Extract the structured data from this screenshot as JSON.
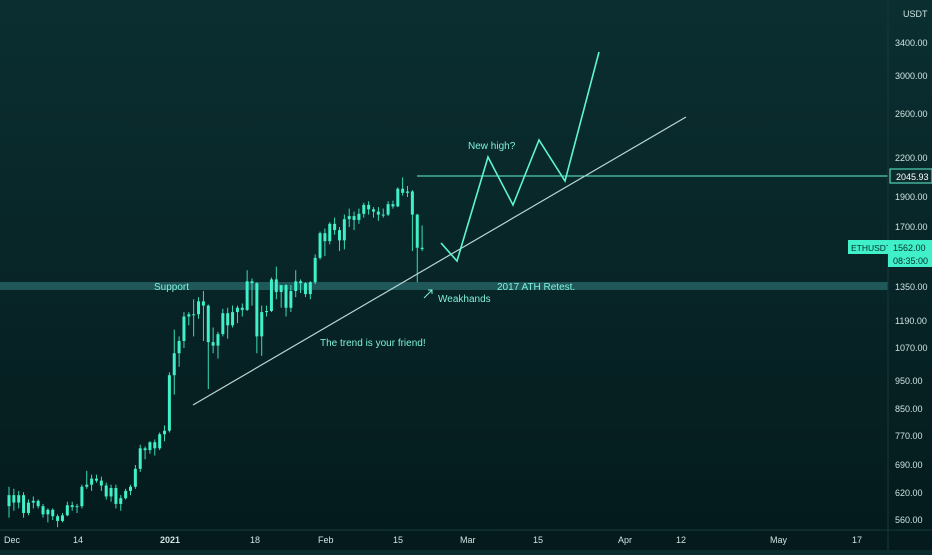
{
  "colors": {
    "bg_top": "#0b2f31",
    "bg_bottom": "#041a1c",
    "candle": "#3ff0c8",
    "drawing": "#5ff5d4",
    "trendline": "#b9d7d3",
    "support_band": "#2a6a6c",
    "text": "#7ff3de",
    "axis_text": "#cfe3e1",
    "price_tag_bg": "#3ff0c8",
    "price_tag_text": "#06302c"
  },
  "price_scale": {
    "currency": "USDT",
    "ticks": [
      "3400.00",
      "3000.00",
      "2600.00",
      "2200.00",
      "1900.00",
      "1700.00",
      "1350.00",
      "1190.00",
      "1070.00",
      "950.00",
      "850.00",
      "770.00",
      "690.00",
      "620.00",
      "560.00"
    ],
    "highlight_level": "2045.93",
    "last_price_symbol": "ETHUSDT",
    "last_price": "1562.00",
    "countdown": "08:35:00"
  },
  "time_axis": {
    "labels": [
      "Dec",
      "14",
      "2021",
      "18",
      "Feb",
      "15",
      "Mar",
      "15",
      "Apr",
      "12",
      "May",
      "17"
    ]
  },
  "annotations": {
    "support": "Support",
    "ath_retest": "2017 ATH Retest.",
    "trend_friend": "The trend is your friend!",
    "weakhands": "Weakhands",
    "new_high": "New high?"
  },
  "chart_data": {
    "type": "candlestick",
    "symbol": "ETHUSDT",
    "scale": "log",
    "ylim": [
      540,
      3600
    ],
    "candles": [
      {
        "x": "Dec 1",
        "o": 590,
        "h": 635,
        "l": 565,
        "c": 615
      },
      {
        "x": "Dec 2",
        "o": 615,
        "h": 630,
        "l": 580,
        "c": 598
      },
      {
        "x": "Dec 3",
        "o": 598,
        "h": 625,
        "l": 585,
        "c": 615
      },
      {
        "x": "Dec 4",
        "o": 615,
        "h": 622,
        "l": 565,
        "c": 575
      },
      {
        "x": "Dec 5",
        "o": 575,
        "h": 605,
        "l": 570,
        "c": 598
      },
      {
        "x": "Dec 6",
        "o": 598,
        "h": 612,
        "l": 585,
        "c": 602
      },
      {
        "x": "Dec 7",
        "o": 602,
        "h": 605,
        "l": 585,
        "c": 590
      },
      {
        "x": "Dec 8",
        "o": 590,
        "h": 595,
        "l": 565,
        "c": 572
      },
      {
        "x": "Dec 9",
        "o": 572,
        "h": 585,
        "l": 555,
        "c": 582
      },
      {
        "x": "Dec 10",
        "o": 582,
        "h": 585,
        "l": 560,
        "c": 568
      },
      {
        "x": "Dec 11",
        "o": 568,
        "h": 572,
        "l": 545,
        "c": 558
      },
      {
        "x": "Dec 12",
        "o": 558,
        "h": 575,
        "l": 555,
        "c": 570
      },
      {
        "x": "Dec 13",
        "o": 570,
        "h": 600,
        "l": 568,
        "c": 592
      },
      {
        "x": "Dec 14",
        "o": 592,
        "h": 600,
        "l": 580,
        "c": 588
      },
      {
        "x": "Dec 15",
        "o": 588,
        "h": 595,
        "l": 575,
        "c": 590
      },
      {
        "x": "Dec 16",
        "o": 590,
        "h": 640,
        "l": 585,
        "c": 635
      },
      {
        "x": "Dec 17",
        "o": 635,
        "h": 675,
        "l": 630,
        "c": 640
      },
      {
        "x": "Dec 18",
        "o": 640,
        "h": 665,
        "l": 625,
        "c": 655
      },
      {
        "x": "Dec 19",
        "o": 655,
        "h": 665,
        "l": 645,
        "c": 650
      },
      {
        "x": "Dec 20",
        "o": 650,
        "h": 660,
        "l": 625,
        "c": 638
      },
      {
        "x": "Dec 21",
        "o": 638,
        "h": 645,
        "l": 605,
        "c": 612
      },
      {
        "x": "Dec 22",
        "o": 612,
        "h": 640,
        "l": 600,
        "c": 632
      },
      {
        "x": "Dec 23",
        "o": 632,
        "h": 640,
        "l": 585,
        "c": 595
      },
      {
        "x": "Dec 24",
        "o": 595,
        "h": 615,
        "l": 580,
        "c": 608
      },
      {
        "x": "Dec 25",
        "o": 608,
        "h": 630,
        "l": 605,
        "c": 625
      },
      {
        "x": "Dec 26",
        "o": 625,
        "h": 640,
        "l": 615,
        "c": 635
      },
      {
        "x": "Dec 27",
        "o": 635,
        "h": 690,
        "l": 630,
        "c": 680
      },
      {
        "x": "Dec 28",
        "o": 680,
        "h": 745,
        "l": 672,
        "c": 735
      },
      {
        "x": "Dec 29",
        "o": 735,
        "h": 740,
        "l": 705,
        "c": 730
      },
      {
        "x": "Dec 30",
        "o": 730,
        "h": 755,
        "l": 720,
        "c": 752
      },
      {
        "x": "Dec 31",
        "o": 752,
        "h": 760,
        "l": 715,
        "c": 735
      },
      {
        "x": "Jan 1",
        "o": 735,
        "h": 780,
        "l": 730,
        "c": 775
      },
      {
        "x": "Jan 2",
        "o": 775,
        "h": 800,
        "l": 755,
        "c": 785
      },
      {
        "x": "Jan 3",
        "o": 785,
        "h": 980,
        "l": 780,
        "c": 970
      },
      {
        "x": "Jan 4",
        "o": 970,
        "h": 1150,
        "l": 900,
        "c": 1050
      },
      {
        "x": "Jan 5",
        "o": 1050,
        "h": 1120,
        "l": 1000,
        "c": 1100
      },
      {
        "x": "Jan 6",
        "o": 1100,
        "h": 1230,
        "l": 1070,
        "c": 1210
      },
      {
        "x": "Jan 7",
        "o": 1210,
        "h": 1230,
        "l": 1170,
        "c": 1220
      },
      {
        "x": "Jan 8",
        "o": 1220,
        "h": 1290,
        "l": 1120,
        "c": 1220
      },
      {
        "x": "Jan 9",
        "o": 1220,
        "h": 1300,
        "l": 1200,
        "c": 1280
      },
      {
        "x": "Jan 10",
        "o": 1280,
        "h": 1330,
        "l": 1100,
        "c": 1260
      },
      {
        "x": "Jan 11",
        "o": 1260,
        "h": 1265,
        "l": 920,
        "c": 1095
      },
      {
        "x": "Jan 12",
        "o": 1095,
        "h": 1160,
        "l": 1050,
        "c": 1080
      },
      {
        "x": "Jan 13",
        "o": 1080,
        "h": 1140,
        "l": 1030,
        "c": 1130
      },
      {
        "x": "Jan 14",
        "o": 1130,
        "h": 1245,
        "l": 1120,
        "c": 1225
      },
      {
        "x": "Jan 15",
        "o": 1225,
        "h": 1250,
        "l": 1110,
        "c": 1170
      },
      {
        "x": "Jan 16",
        "o": 1170,
        "h": 1260,
        "l": 1160,
        "c": 1230
      },
      {
        "x": "Jan 17",
        "o": 1230,
        "h": 1260,
        "l": 1180,
        "c": 1250
      },
      {
        "x": "Jan 18",
        "o": 1250,
        "h": 1270,
        "l": 1210,
        "c": 1240
      },
      {
        "x": "Jan 19",
        "o": 1240,
        "h": 1440,
        "l": 1235,
        "c": 1380
      },
      {
        "x": "Jan 20",
        "o": 1380,
        "h": 1395,
        "l": 1260,
        "c": 1370
      },
      {
        "x": "Jan 21",
        "o": 1370,
        "h": 1375,
        "l": 1050,
        "c": 1120
      },
      {
        "x": "Jan 22",
        "o": 1120,
        "h": 1260,
        "l": 1040,
        "c": 1230
      },
      {
        "x": "Jan 23",
        "o": 1230,
        "h": 1260,
        "l": 1210,
        "c": 1235
      },
      {
        "x": "Jan 24",
        "o": 1235,
        "h": 1400,
        "l": 1230,
        "c": 1390
      },
      {
        "x": "Jan 25",
        "o": 1390,
        "h": 1460,
        "l": 1290,
        "c": 1325
      },
      {
        "x": "Jan 26",
        "o": 1325,
        "h": 1360,
        "l": 1250,
        "c": 1360
      },
      {
        "x": "Jan 27",
        "o": 1360,
        "h": 1365,
        "l": 1210,
        "c": 1250
      },
      {
        "x": "Jan 28",
        "o": 1250,
        "h": 1360,
        "l": 1230,
        "c": 1330
      },
      {
        "x": "Jan 29",
        "o": 1330,
        "h": 1440,
        "l": 1300,
        "c": 1380
      },
      {
        "x": "Jan 30",
        "o": 1380,
        "h": 1390,
        "l": 1320,
        "c": 1370
      },
      {
        "x": "Jan 31",
        "o": 1370,
        "h": 1375,
        "l": 1300,
        "c": 1315
      },
      {
        "x": "Feb 1",
        "o": 1315,
        "h": 1380,
        "l": 1290,
        "c": 1375
      },
      {
        "x": "Feb 2",
        "o": 1375,
        "h": 1530,
        "l": 1365,
        "c": 1510
      },
      {
        "x": "Feb 3",
        "o": 1510,
        "h": 1670,
        "l": 1500,
        "c": 1660
      },
      {
        "x": "Feb 4",
        "o": 1660,
        "h": 1690,
        "l": 1520,
        "c": 1610
      },
      {
        "x": "Feb 5",
        "o": 1610,
        "h": 1730,
        "l": 1590,
        "c": 1720
      },
      {
        "x": "Feb 6",
        "o": 1720,
        "h": 1760,
        "l": 1650,
        "c": 1680
      },
      {
        "x": "Feb 7",
        "o": 1680,
        "h": 1700,
        "l": 1550,
        "c": 1615
      },
      {
        "x": "Feb 8",
        "o": 1615,
        "h": 1780,
        "l": 1560,
        "c": 1750
      },
      {
        "x": "Feb 9",
        "o": 1750,
        "h": 1820,
        "l": 1700,
        "c": 1770
      },
      {
        "x": "Feb 10",
        "o": 1770,
        "h": 1800,
        "l": 1680,
        "c": 1745
      },
      {
        "x": "Feb 11",
        "o": 1745,
        "h": 1820,
        "l": 1720,
        "c": 1785
      },
      {
        "x": "Feb 12",
        "o": 1785,
        "h": 1860,
        "l": 1760,
        "c": 1845
      },
      {
        "x": "Feb 13",
        "o": 1845,
        "h": 1870,
        "l": 1780,
        "c": 1815
      },
      {
        "x": "Feb 14",
        "o": 1815,
        "h": 1830,
        "l": 1760,
        "c": 1800
      },
      {
        "x": "Feb 15",
        "o": 1800,
        "h": 1830,
        "l": 1740,
        "c": 1780
      },
      {
        "x": "Feb 16",
        "o": 1780,
        "h": 1820,
        "l": 1760,
        "c": 1780
      },
      {
        "x": "Feb 17",
        "o": 1780,
        "h": 1870,
        "l": 1770,
        "c": 1850
      },
      {
        "x": "Feb 18",
        "o": 1850,
        "h": 1875,
        "l": 1820,
        "c": 1835
      },
      {
        "x": "Feb 19",
        "o": 1835,
        "h": 1970,
        "l": 1830,
        "c": 1960
      },
      {
        "x": "Feb 20",
        "o": 1960,
        "h": 2045,
        "l": 1910,
        "c": 1930
      },
      {
        "x": "Feb 21",
        "o": 1930,
        "h": 1980,
        "l": 1900,
        "c": 1940
      },
      {
        "x": "Feb 22",
        "o": 1940,
        "h": 1950,
        "l": 1550,
        "c": 1780
      },
      {
        "x": "Feb 23",
        "o": 1780,
        "h": 1785,
        "l": 1375,
        "c": 1570
      },
      {
        "x": "Feb 24",
        "o": 1570,
        "h": 1710,
        "l": 1550,
        "c": 1562
      }
    ],
    "projection": [
      {
        "x": "Feb 25",
        "y": 1650
      },
      {
        "x": "Feb 29",
        "y": 1570
      },
      {
        "x": "Mar 5",
        "y": 2200
      },
      {
        "x": "Mar 10",
        "y": 1850
      },
      {
        "x": "Mar 15",
        "y": 2320
      },
      {
        "x": "Mar 20",
        "y": 1990
      },
      {
        "x": "Mar 26",
        "y": 3300
      }
    ],
    "trendline": [
      {
        "x": "Jan 6",
        "y": 860
      },
      {
        "x": "Apr 12",
        "y": 2520
      }
    ],
    "horizontal_levels": [
      {
        "value": 2045.93,
        "label": "2045.93"
      },
      {
        "value": 1385,
        "label": "Support"
      }
    ]
  }
}
